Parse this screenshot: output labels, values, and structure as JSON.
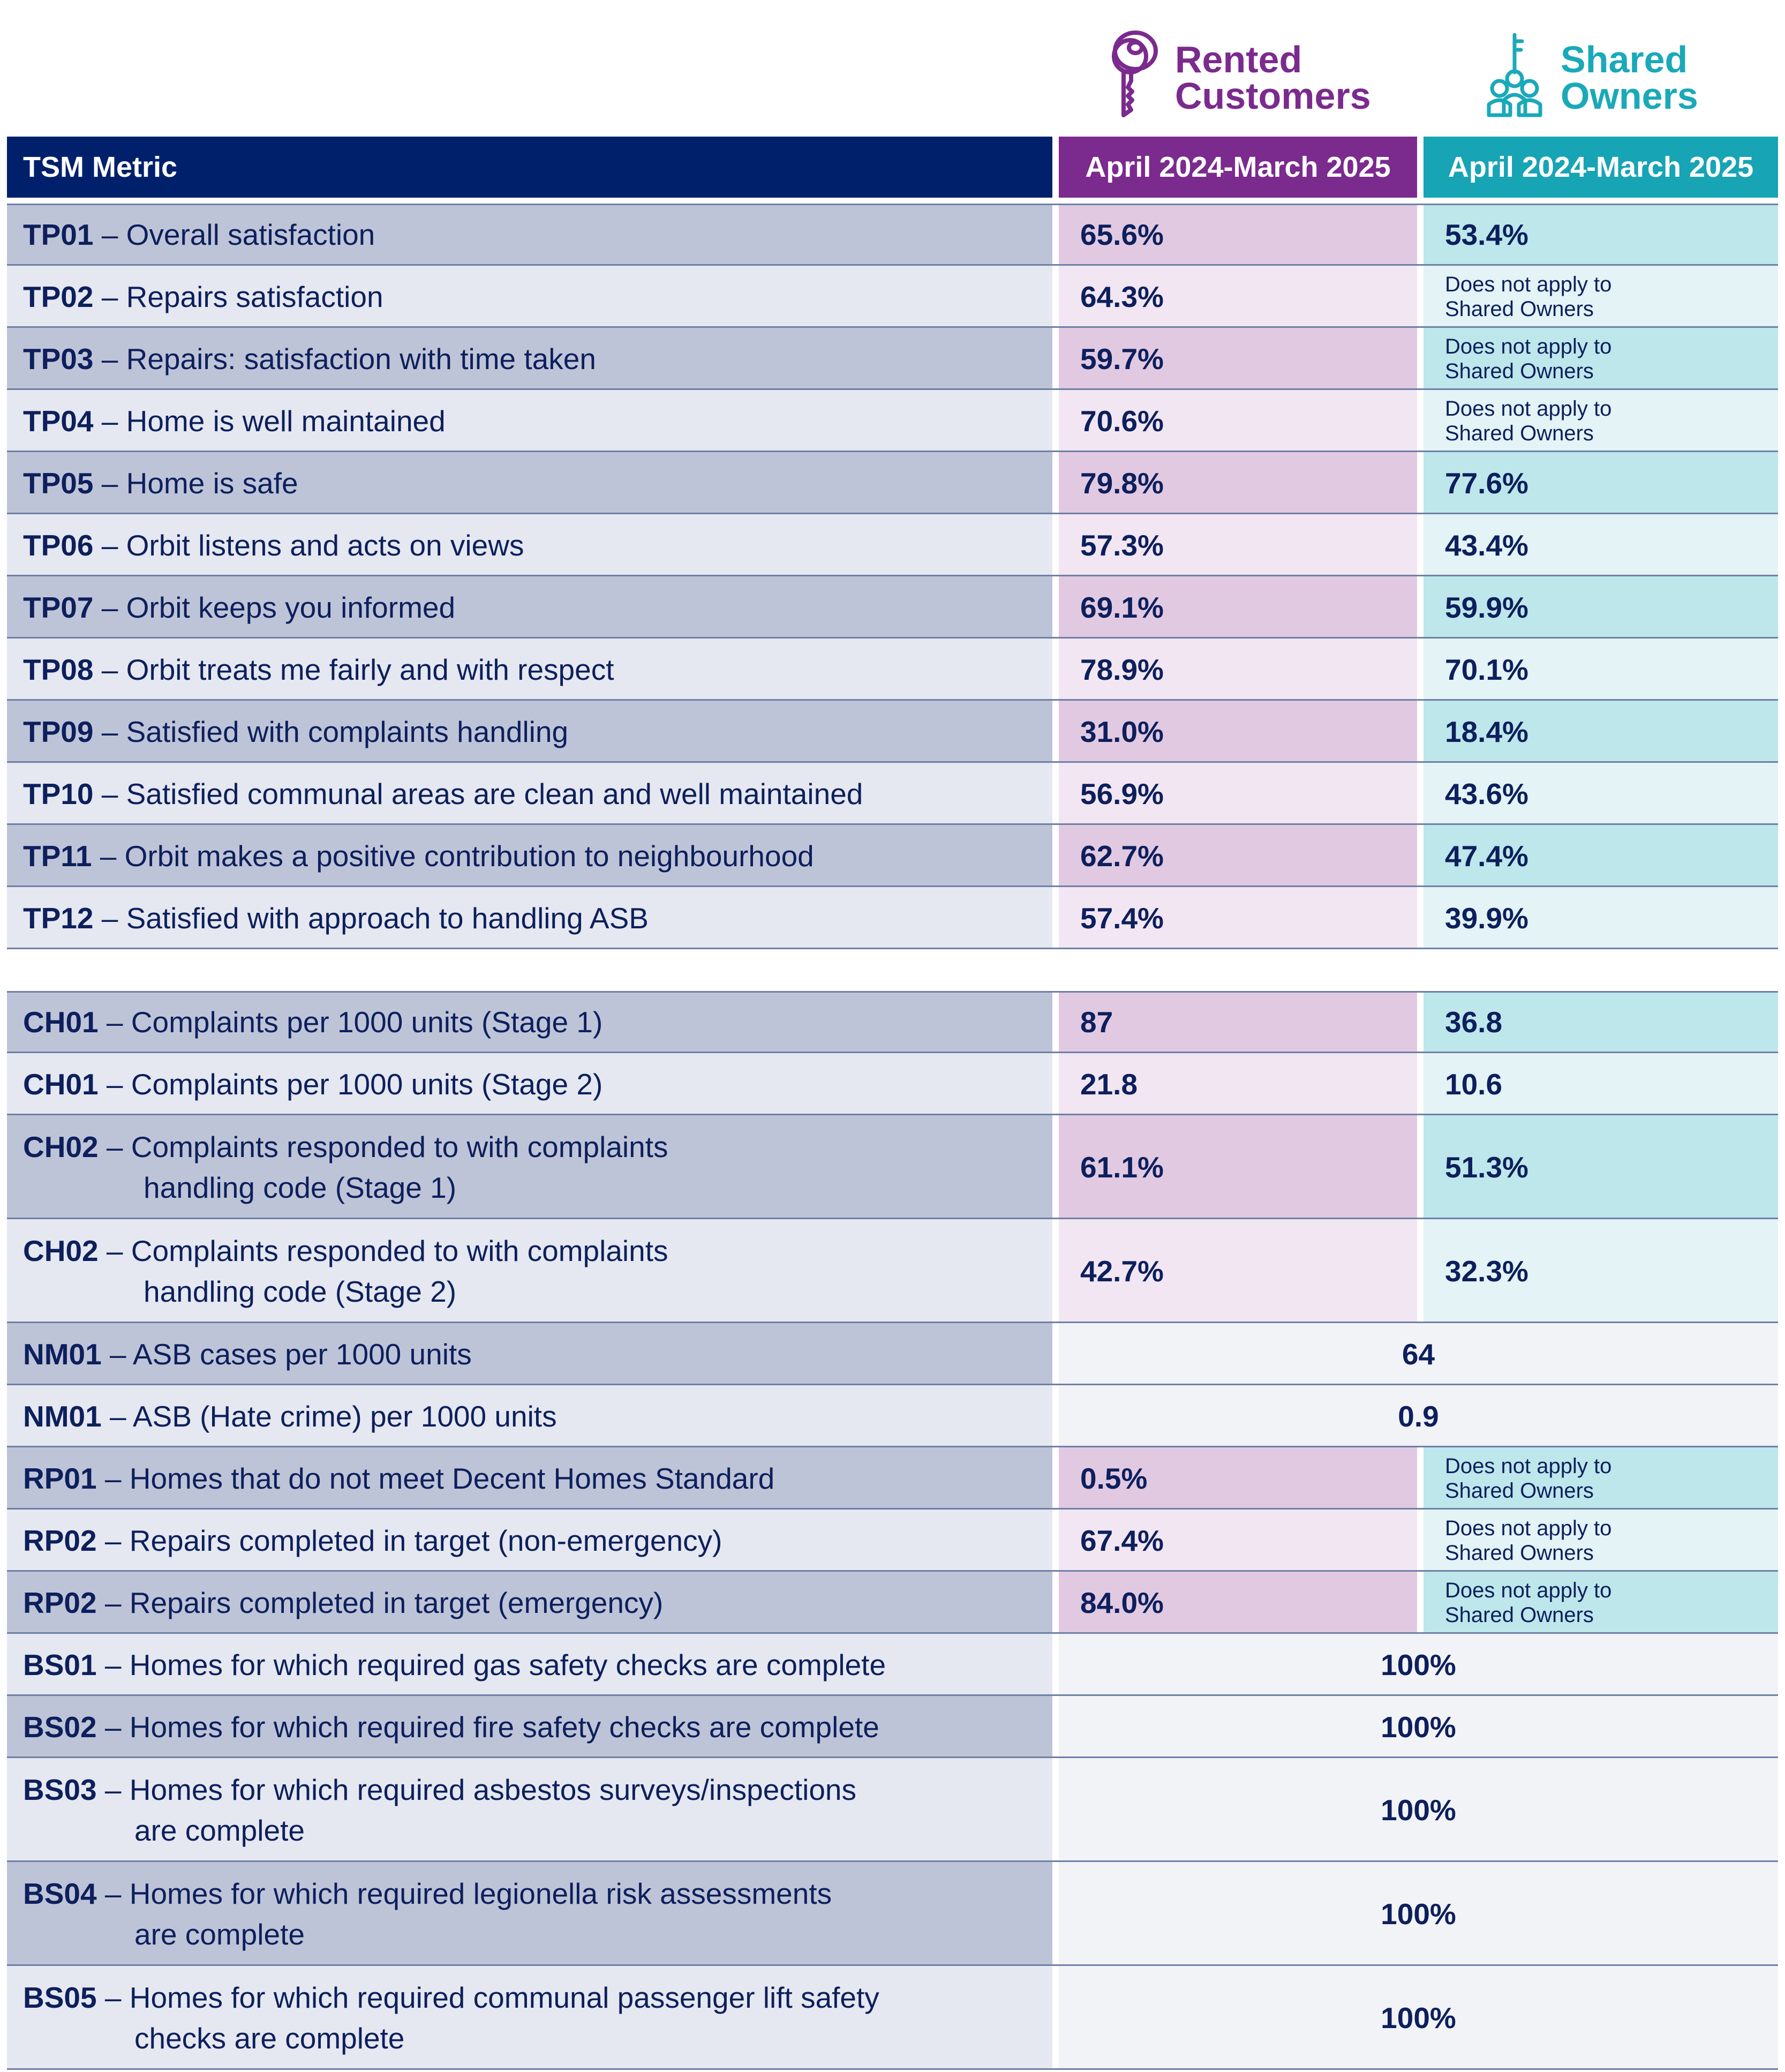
{
  "header": {
    "rented_logo": {
      "line1": "Rented",
      "line2": "Customers",
      "icon": "key-icon",
      "color": "#7b2a8e"
    },
    "shared_logo": {
      "line1": "Shared",
      "line2": "Owners",
      "icon": "key-people-icon",
      "color": "#1aa9b9"
    },
    "metric_col": "TSM Metric",
    "rented_col": "April 2024-March 2025",
    "shared_col": "April 2024-March 2025"
  },
  "na_text": {
    "line1": "Does not apply to",
    "line2": "Shared Owners"
  },
  "rows": [
    {
      "code": "TP01",
      "label": "Overall satisfaction",
      "rented": "65.6%",
      "shared": "53.4%"
    },
    {
      "code": "TP02",
      "label": "Repairs satisfaction",
      "rented": "64.3%",
      "shared": null
    },
    {
      "code": "TP03",
      "label": "Repairs: satisfaction with time taken",
      "rented": "59.7%",
      "shared": null
    },
    {
      "code": "TP04",
      "label": "Home is well maintained",
      "rented": "70.6%",
      "shared": null
    },
    {
      "code": "TP05",
      "label": "Home is safe",
      "rented": "79.8%",
      "shared": "77.6%"
    },
    {
      "code": "TP06",
      "label": "Orbit listens and acts on views",
      "rented": "57.3%",
      "shared": "43.4%"
    },
    {
      "code": "TP07",
      "label": "Orbit keeps you informed",
      "rented": "69.1%",
      "shared": "59.9%"
    },
    {
      "code": "TP08",
      "label": "Orbit treats me fairly and with respect",
      "rented": "78.9%",
      "shared": "70.1%"
    },
    {
      "code": "TP09",
      "label": "Satisfied with complaints handling",
      "rented": "31.0%",
      "shared": "18.4%"
    },
    {
      "code": "TP10",
      "label": "Satisfied communal areas are clean and well maintained",
      "rented": "56.9%",
      "shared": "43.6%"
    },
    {
      "code": "TP11",
      "label": "Orbit makes a positive contribution to neighbourhood",
      "rented": "62.7%",
      "shared": "47.4%"
    },
    {
      "code": "TP12",
      "label": "Satisfied with approach to handling ASB",
      "rented": "57.4%",
      "shared": "39.9%"
    },
    {
      "code": "CH01",
      "label": "Complaints per 1000 units (Stage 1)",
      "rented": "87",
      "shared": "36.8"
    },
    {
      "code": "CH01",
      "label": "Complaints per 1000 units (Stage 2)",
      "rented": "21.8",
      "shared": "10.6"
    },
    {
      "code": "CH02",
      "label": "Complaints responded to with complaints",
      "label2": "handling code (Stage 1)",
      "rented": "61.1%",
      "shared": "51.3%"
    },
    {
      "code": "CH02",
      "label": "Complaints responded to with complaints",
      "label2": "handling code (Stage 2)",
      "rented": "42.7%",
      "shared": "32.3%"
    },
    {
      "code": "NM01",
      "label": "ASB cases per 1000 units",
      "combined": "64"
    },
    {
      "code": "NM01",
      "label": "ASB (Hate crime) per 1000 units",
      "combined": "0.9"
    },
    {
      "code": "RP01",
      "label": "Homes that do not meet Decent Homes Standard",
      "rented": "0.5%",
      "shared": null
    },
    {
      "code": "RP02",
      "label": "Repairs completed in target (non-emergency)",
      "rented": "67.4%",
      "shared": null
    },
    {
      "code": "RP02",
      "label": "Repairs completed in target (emergency)",
      "rented": "84.0%",
      "shared": null
    },
    {
      "code": "BS01",
      "label": "Homes for which required gas safety checks are complete",
      "combined": "100%"
    },
    {
      "code": "BS02",
      "label": "Homes for which required fire safety checks are complete",
      "combined": "100%"
    },
    {
      "code": "BS03",
      "label": "Homes for which required asbestos surveys/inspections",
      "label2": "are complete",
      "combined": "100%"
    },
    {
      "code": "BS04",
      "label": "Homes for which required legionella risk assessments",
      "label2": "are complete",
      "combined": "100%"
    },
    {
      "code": "BS05",
      "label": "Homes for which required communal passenger lift safety",
      "label2": "checks are complete",
      "combined": "100%"
    }
  ]
}
